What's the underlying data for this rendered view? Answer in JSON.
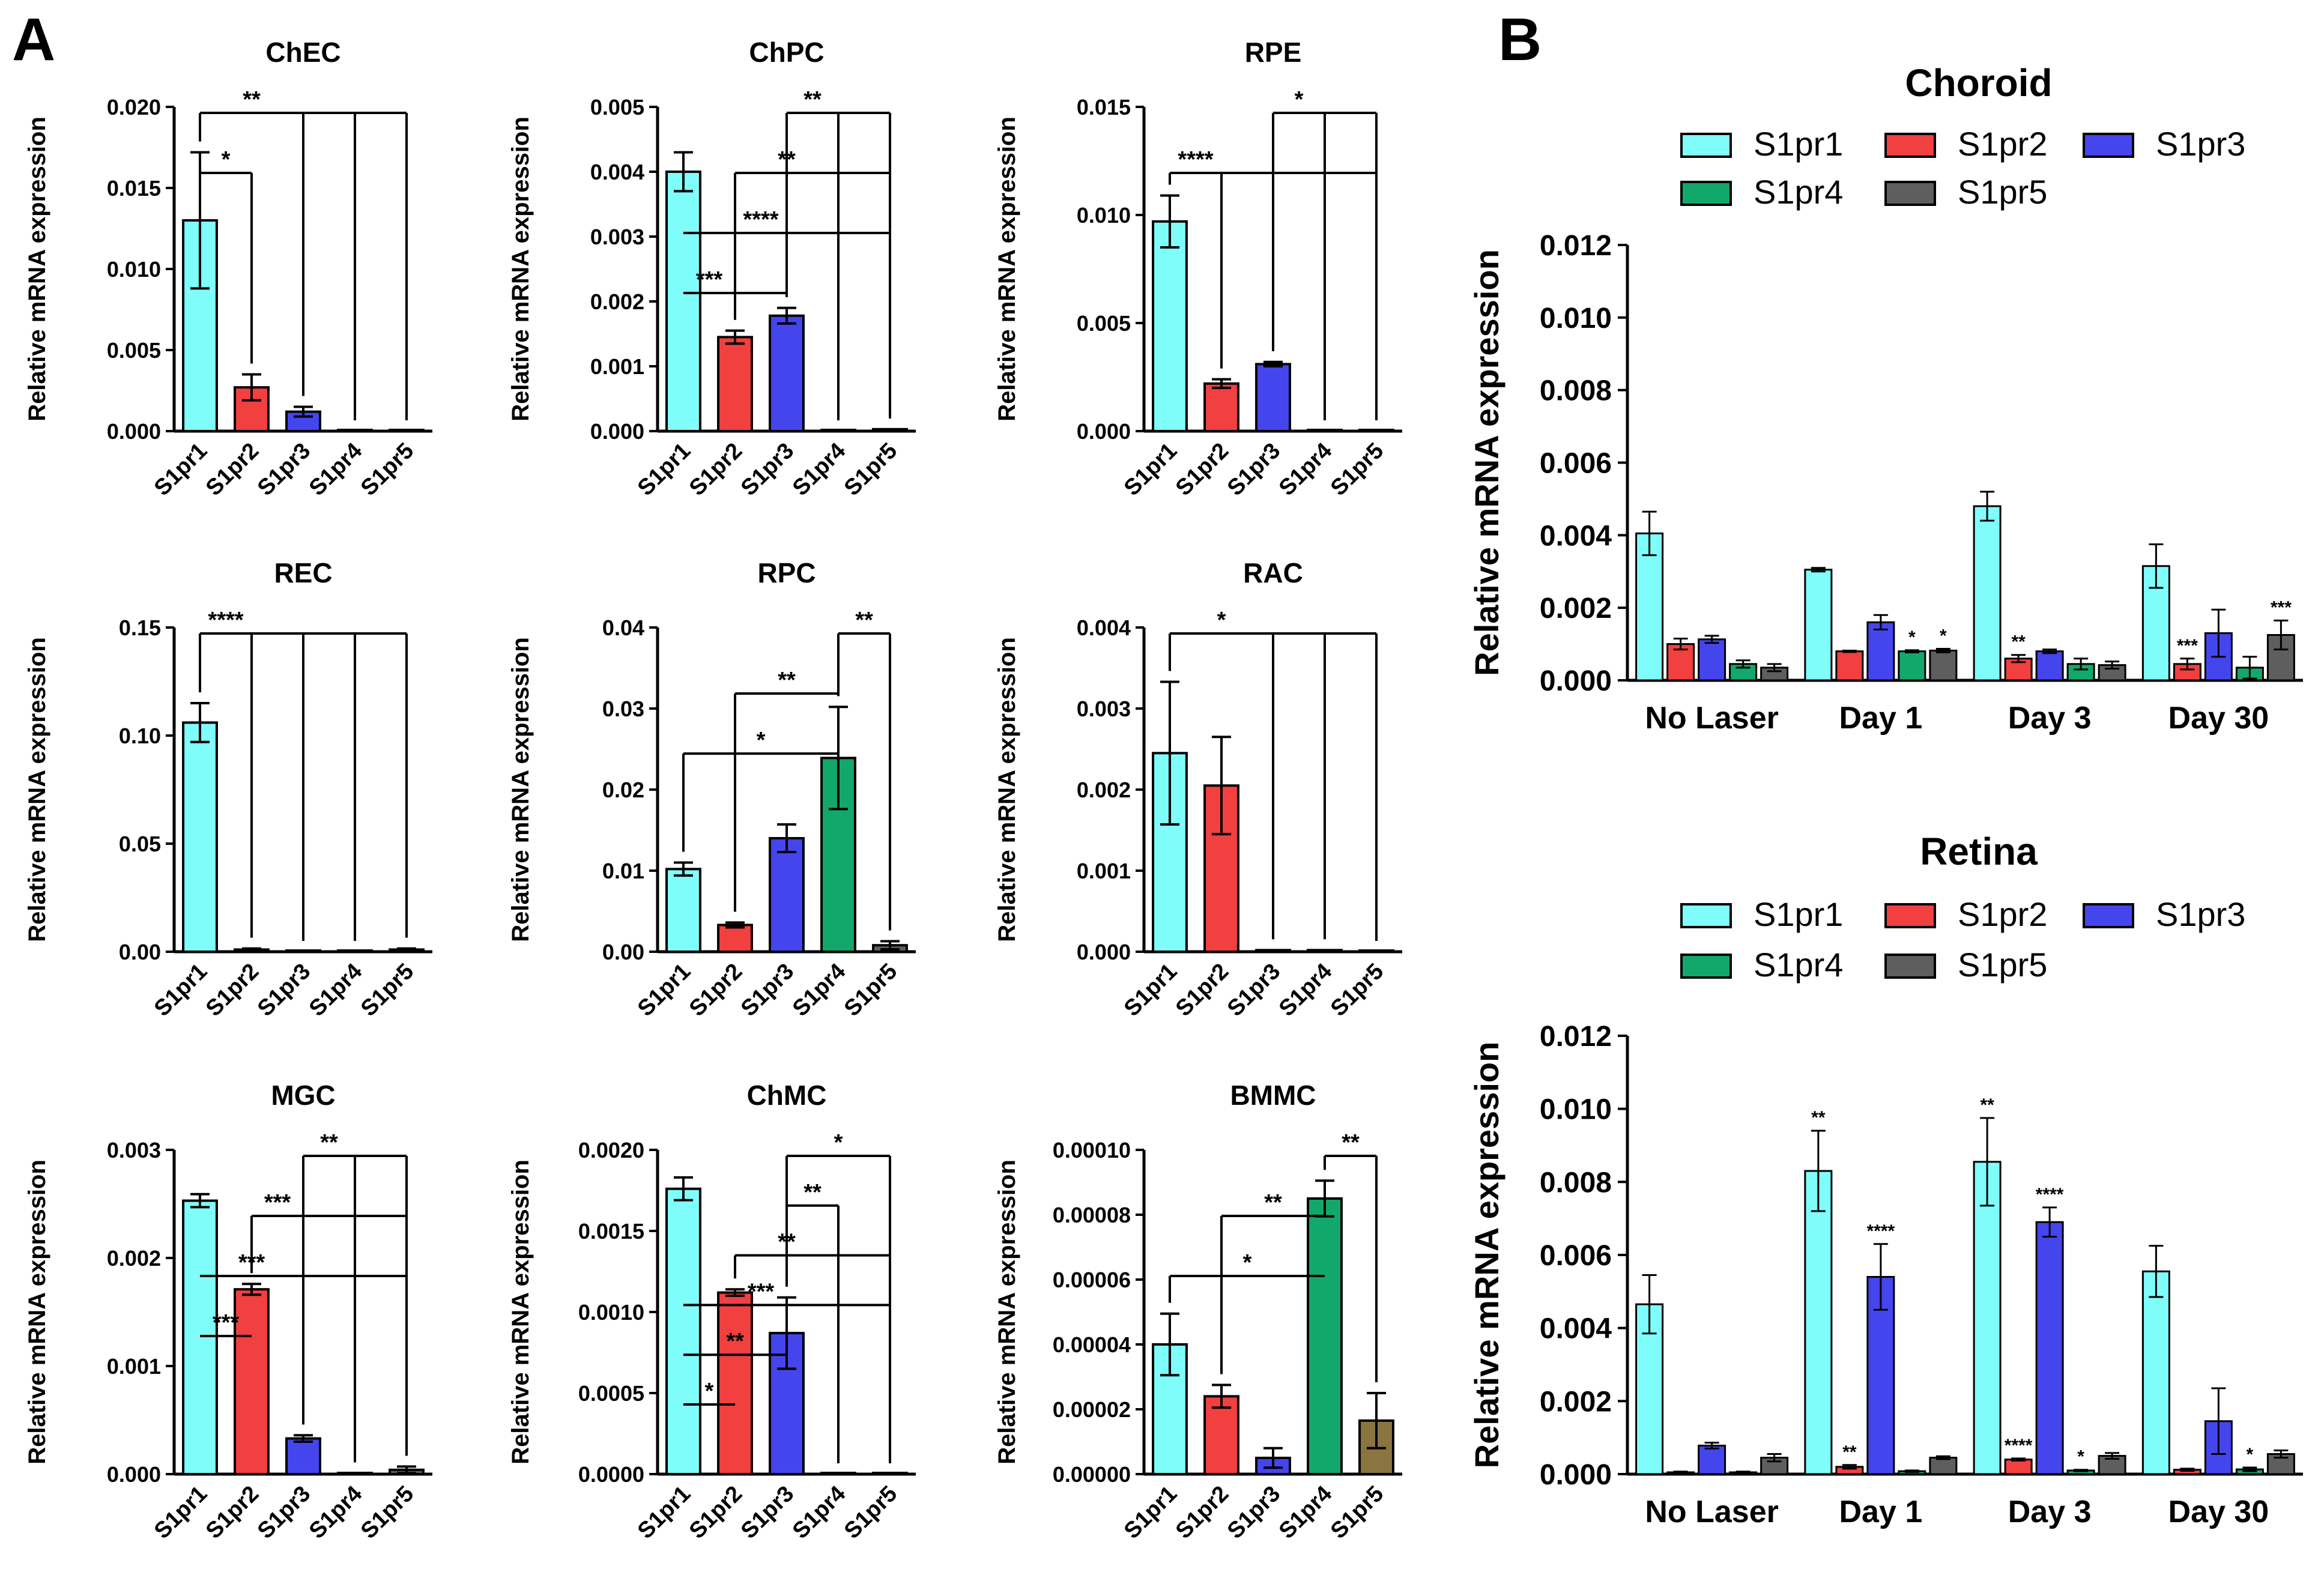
{
  "panel_labels": {
    "a": "A",
    "b": "B"
  },
  "colors": {
    "S1pr1": "#7ffdfb",
    "S1pr2": "#f23f3f",
    "S1pr3": "#4545ee",
    "S1pr4": "#12a86b",
    "S1pr5": "#5e5e5e",
    "BMMC_S1pr5": "#8a7440",
    "bar_stroke": "#000000"
  },
  "chart_data": [
    {
      "id": "ChEC",
      "type": "bar",
      "title": "ChEC",
      "ylabel": "Relative mRNA expression",
      "categories": [
        "S1pr1",
        "S1pr2",
        "S1pr3",
        "S1pr4",
        "S1pr5"
      ],
      "values": [
        0.013,
        0.0027,
        0.0012,
        0.0,
        0.0
      ],
      "errors": [
        0.0042,
        0.0008,
        0.0003,
        0,
        0
      ],
      "ylim": [
        0,
        0.02
      ],
      "yticks": [
        0.0,
        0.005,
        0.01,
        0.015,
        0.02
      ],
      "ytick_labels": [
        "0.000",
        "0.005",
        "0.010",
        "0.015",
        "0.020"
      ],
      "significance": [
        {
          "from": 0,
          "to": [
            1
          ],
          "label": "*"
        },
        {
          "from": 0,
          "to": [
            2,
            3,
            4
          ],
          "label": "**"
        }
      ]
    },
    {
      "id": "ChPC",
      "type": "bar",
      "title": "ChPC",
      "ylabel": "Relative mRNA expression",
      "categories": [
        "S1pr1",
        "S1pr2",
        "S1pr3",
        "S1pr4",
        "S1pr5"
      ],
      "values": [
        0.004,
        0.00145,
        0.00178,
        0.0,
        3e-05
      ],
      "errors": [
        0.0003,
        0.0001,
        0.00012,
        0,
        0
      ],
      "ylim": [
        0,
        0.005
      ],
      "yticks": [
        0.0,
        0.001,
        0.002,
        0.003,
        0.004,
        0.005
      ],
      "ytick_labels": [
        "0.000",
        "0.001",
        "0.002",
        "0.003",
        "0.004",
        "0.005"
      ],
      "significance": [
        {
          "from": 0,
          "to": [
            1,
            2
          ],
          "label": "***"
        },
        {
          "from": 0,
          "to": [
            3,
            4
          ],
          "label": "****"
        },
        {
          "from": 1,
          "to": [
            3,
            4
          ],
          "label": "**"
        },
        {
          "from": 2,
          "to": [
            3,
            4
          ],
          "label": "**"
        }
      ]
    },
    {
      "id": "RPE",
      "type": "bar",
      "title": "RPE",
      "ylabel": "Relative mRNA expression",
      "categories": [
        "S1pr1",
        "S1pr2",
        "S1pr3",
        "S1pr4",
        "S1pr5"
      ],
      "values": [
        0.0097,
        0.0022,
        0.0031,
        0.0,
        0.0
      ],
      "errors": [
        0.0012,
        0.0002,
        0.0001,
        0,
        0
      ],
      "ylim": [
        0,
        0.015
      ],
      "yticks": [
        0.0,
        0.005,
        0.01,
        0.015
      ],
      "ytick_labels": [
        "0.000",
        "0.005",
        "0.010",
        "0.015"
      ],
      "significance": [
        {
          "from": 0,
          "to": [
            1,
            2,
            3,
            4
          ],
          "label": "****"
        },
        {
          "from": 2,
          "to": [
            3,
            4
          ],
          "label": "*"
        }
      ]
    },
    {
      "id": "REC",
      "type": "bar",
      "title": "REC",
      "ylabel": "Relative mRNA expression",
      "categories": [
        "S1pr1",
        "S1pr2",
        "S1pr3",
        "S1pr4",
        "S1pr5"
      ],
      "values": [
        0.106,
        0.001,
        0.0,
        0.0,
        0.001
      ],
      "errors": [
        0.009,
        0.0005,
        0,
        0,
        0.0005
      ],
      "ylim": [
        0,
        0.15
      ],
      "yticks": [
        0.0,
        0.05,
        0.1,
        0.15
      ],
      "ytick_labels": [
        "0.00",
        "0.05",
        "0.10",
        "0.15"
      ],
      "significance": [
        {
          "from": 0,
          "to": [
            1,
            2,
            3,
            4
          ],
          "label": "****"
        }
      ]
    },
    {
      "id": "RPC",
      "type": "bar",
      "title": "RPC",
      "ylabel": "Relative mRNA expression",
      "categories": [
        "S1pr1",
        "S1pr2",
        "S1pr3",
        "S1pr4",
        "S1pr5"
      ],
      "values": [
        0.0102,
        0.0033,
        0.014,
        0.0239,
        0.0008
      ],
      "errors": [
        0.0008,
        0.0003,
        0.0017,
        0.0063,
        0.0005
      ],
      "ylim": [
        0,
        0.04
      ],
      "yticks": [
        0.0,
        0.01,
        0.02,
        0.03,
        0.04
      ],
      "ytick_labels": [
        "0.00",
        "0.01",
        "0.02",
        "0.03",
        "0.04"
      ],
      "significance": [
        {
          "from": 3,
          "to": [
            0
          ],
          "label": "*"
        },
        {
          "from": 3,
          "to": [
            1
          ],
          "label": "**"
        },
        {
          "from": 3,
          "to": [
            4
          ],
          "label": "**"
        }
      ]
    },
    {
      "id": "RAC",
      "type": "bar",
      "title": "RAC",
      "ylabel": "Relative mRNA expression",
      "categories": [
        "S1pr1",
        "S1pr2",
        "S1pr3",
        "S1pr4",
        "S1pr5"
      ],
      "values": [
        0.00245,
        0.00205,
        2e-05,
        2e-05,
        0.0
      ],
      "errors": [
        0.00088,
        0.0006,
        0,
        0,
        0
      ],
      "ylim": [
        0,
        0.004
      ],
      "yticks": [
        0.0,
        0.001,
        0.002,
        0.003,
        0.004
      ],
      "ytick_labels": [
        "0.000",
        "0.001",
        "0.002",
        "0.003",
        "0.004"
      ],
      "significance": [
        {
          "from": 0,
          "to": [
            2,
            3,
            4
          ],
          "label": "*"
        }
      ]
    },
    {
      "id": "MGC",
      "type": "bar",
      "title": "MGC",
      "ylabel": "Relative mRNA expression",
      "categories": [
        "S1pr1",
        "S1pr2",
        "S1pr3",
        "S1pr4",
        "S1pr5"
      ],
      "values": [
        0.00253,
        0.00171,
        0.00033,
        1e-05,
        4e-05
      ],
      "errors": [
        6e-05,
        5e-05,
        3e-05,
        0,
        3e-05
      ],
      "ylim": [
        0,
        0.003
      ],
      "yticks": [
        0.0,
        0.001,
        0.002,
        0.003
      ],
      "ytick_labels": [
        "0.000",
        "0.001",
        "0.002",
        "0.003"
      ],
      "significance": [
        {
          "from": 0,
          "to": [
            1
          ],
          "label": "***"
        },
        {
          "from": 0,
          "to": [
            2,
            3,
            4
          ],
          "label": "***"
        },
        {
          "from": 1,
          "to": [
            2,
            3,
            4
          ],
          "label": "***"
        },
        {
          "from": 2,
          "to": [
            3,
            4
          ],
          "label": "**"
        }
      ]
    },
    {
      "id": "ChMC",
      "type": "bar",
      "title": "ChMC",
      "ylabel": "Relative mRNA expression",
      "categories": [
        "S1pr1",
        "S1pr2",
        "S1pr3",
        "S1pr4",
        "S1pr5"
      ],
      "values": [
        0.00176,
        0.00112,
        0.00087,
        0.0,
        0.0
      ],
      "errors": [
        7e-05,
        2e-05,
        0.00022,
        0,
        0
      ],
      "ylim": [
        0,
        0.002
      ],
      "yticks": [
        0.0,
        0.0005,
        0.001,
        0.0015,
        0.002
      ],
      "ytick_labels": [
        "0.0000",
        "0.0005",
        "0.0010",
        "0.0015",
        "0.0020"
      ],
      "significance": [
        {
          "from": 0,
          "to": [
            1
          ],
          "label": "*"
        },
        {
          "from": 0,
          "to": [
            2
          ],
          "label": "**"
        },
        {
          "from": 0,
          "to": [
            3,
            4
          ],
          "label": "***"
        },
        {
          "from": 1,
          "to": [
            3,
            4
          ],
          "label": "**"
        },
        {
          "from": 2,
          "to": [
            3
          ],
          "label": "**"
        },
        {
          "from": 2,
          "to": [
            4
          ],
          "label": "*"
        }
      ]
    },
    {
      "id": "BMMC",
      "type": "bar",
      "title": "BMMC",
      "ylabel": "Relative mRNA expression",
      "categories": [
        "S1pr1",
        "S1pr2",
        "S1pr3",
        "S1pr4",
        "S1pr5"
      ],
      "values": [
        4e-05,
        2.4e-05,
        5e-06,
        8.5e-05,
        1.65e-05
      ],
      "errors": [
        9.5e-06,
        3.5e-06,
        3e-06,
        5.5e-06,
        8.5e-06
      ],
      "ylim": [
        0,
        0.0001
      ],
      "yticks": [
        0.0,
        2e-05,
        4e-05,
        6e-05,
        8e-05,
        0.0001
      ],
      "ytick_labels": [
        "0.00000",
        "0.00002",
        "0.00004",
        "0.00006",
        "0.00008",
        "0.00010"
      ],
      "significance": [
        {
          "from": 3,
          "to": [
            0
          ],
          "label": "*"
        },
        {
          "from": 3,
          "to": [
            1
          ],
          "label": "**"
        },
        {
          "from": 3,
          "to": [
            4
          ],
          "label": "**"
        }
      ]
    },
    {
      "id": "Choroid",
      "type": "bar",
      "title": "Choroid",
      "ylabel": "Relative mRNA expression",
      "categories": [
        "No Laser",
        "Day 1",
        "Day 3",
        "Day 30"
      ],
      "series": [
        {
          "name": "S1pr1",
          "values": [
            0.00405,
            0.00305,
            0.0048,
            0.00315
          ],
          "errors": [
            0.0006,
            5e-05,
            0.0004,
            0.0006
          ],
          "stars": [
            "",
            "",
            "",
            ""
          ]
        },
        {
          "name": "S1pr2",
          "values": [
            0.001,
            0.0008,
            0.0006,
            0.00045
          ],
          "errors": [
            0.00015,
            2e-05,
            0.0001,
            0.00015
          ],
          "stars": [
            "",
            "",
            "**",
            "***"
          ]
        },
        {
          "name": "S1pr3",
          "values": [
            0.00113,
            0.0016,
            0.0008,
            0.0013
          ],
          "errors": [
            0.0001,
            0.0002,
            5e-05,
            0.00065
          ],
          "stars": [
            "",
            "",
            "",
            ""
          ]
        },
        {
          "name": "S1pr4",
          "values": [
            0.00045,
            0.0008,
            0.00045,
            0.00035
          ],
          "errors": [
            0.0001,
            3e-05,
            0.00015,
            0.0003
          ],
          "stars": [
            "",
            "*",
            "",
            ""
          ]
        },
        {
          "name": "S1pr5",
          "values": [
            0.00035,
            0.00082,
            0.00042,
            0.00125
          ],
          "errors": [
            0.0001,
            5e-05,
            0.0001,
            0.0004
          ],
          "stars": [
            "",
            "*",
            "",
            "***"
          ]
        }
      ],
      "ylim": [
        0,
        0.012
      ],
      "yticks": [
        0.0,
        0.002,
        0.004,
        0.006,
        0.008,
        0.01,
        0.012
      ],
      "ytick_labels": [
        "0.000",
        "0.002",
        "0.004",
        "0.006",
        "0.008",
        "0.010",
        "0.012"
      ],
      "legend": [
        "S1pr1",
        "S1pr2",
        "S1pr3",
        "S1pr4",
        "S1pr5"
      ]
    },
    {
      "id": "Retina",
      "type": "bar",
      "title": "Retina",
      "ylabel": "Relative mRNA expression",
      "categories": [
        "No Laser",
        "Day 1",
        "Day 3",
        "Day 30"
      ],
      "series": [
        {
          "name": "S1pr1",
          "values": [
            0.00465,
            0.0083,
            0.00855,
            0.00555
          ],
          "errors": [
            0.0008,
            0.0011,
            0.0012,
            0.0007
          ],
          "stars": [
            "",
            "**",
            "**",
            ""
          ]
        },
        {
          "name": "S1pr2",
          "values": [
            5e-05,
            0.0002,
            0.0004,
            0.00012
          ],
          "errors": [
            2e-05,
            5e-05,
            3e-05,
            3e-05
          ],
          "stars": [
            "",
            "**",
            "****",
            ""
          ]
        },
        {
          "name": "S1pr3",
          "values": [
            0.00078,
            0.0054,
            0.0069,
            0.00145
          ],
          "errors": [
            8e-05,
            0.0009,
            0.0004,
            0.0009
          ],
          "stars": [
            "",
            "****",
            "****",
            ""
          ]
        },
        {
          "name": "S1pr4",
          "values": [
            5e-05,
            8e-05,
            0.0001,
            0.00013
          ],
          "errors": [
            2e-05,
            2e-05,
            2e-05,
            5e-05
          ],
          "stars": [
            "",
            "",
            "*",
            "*"
          ]
        },
        {
          "name": "S1pr5",
          "values": [
            0.00045,
            0.00045,
            0.0005,
            0.00055
          ],
          "errors": [
            0.0001,
            4e-05,
            8e-05,
            0.0001
          ],
          "stars": [
            "",
            "",
            "",
            ""
          ]
        }
      ],
      "ylim": [
        0,
        0.012
      ],
      "yticks": [
        0.0,
        0.002,
        0.004,
        0.006,
        0.008,
        0.01,
        0.012
      ],
      "ytick_labels": [
        "0.000",
        "0.002",
        "0.004",
        "0.006",
        "0.008",
        "0.010",
        "0.012"
      ],
      "legend": [
        "S1pr1",
        "S1pr2",
        "S1pr3",
        "S1pr4",
        "S1pr5"
      ]
    }
  ]
}
